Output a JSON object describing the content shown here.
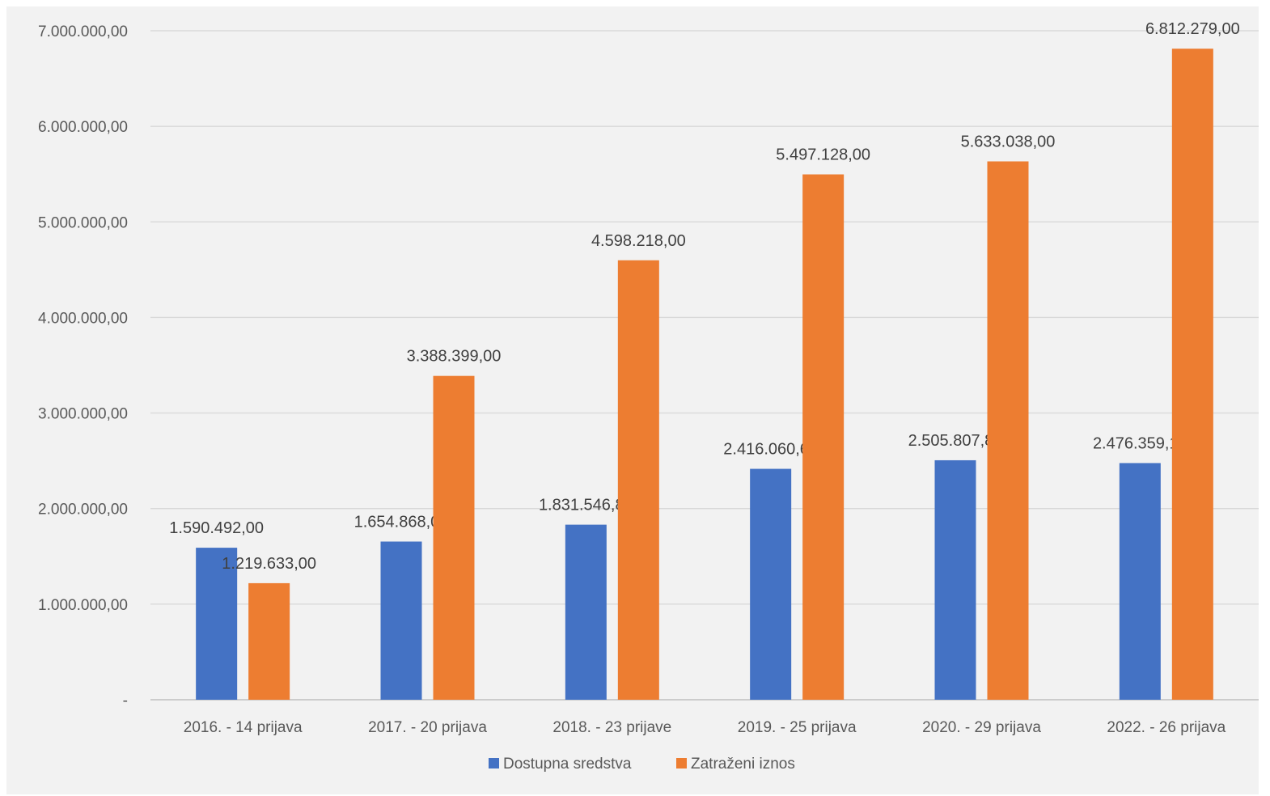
{
  "chart_data": {
    "type": "bar",
    "categories": [
      "2016. - 14 prijava",
      "2017. - 20 prijava",
      "2018. - 23 prijave",
      "2019. - 25 prijava",
      "2020. - 29 prijava",
      "2022. - 26 prijava"
    ],
    "series": [
      {
        "name": "Dostupna sredstva",
        "color": "#4472c4",
        "values": [
          1590492.0,
          1654868.0,
          1831546.82,
          2416060.61,
          2505807.89,
          2476359.19
        ],
        "labels": [
          "1.590.492,00",
          "1.654.868,00",
          "1.831.546,82",
          "2.416.060,61",
          "2.505.807,89",
          "2.476.359,19"
        ]
      },
      {
        "name": "Zatraženi iznos",
        "color": "#ed7d31",
        "values": [
          1219633.0,
          3388399.0,
          4598218.0,
          5497128.0,
          5633038.0,
          6812279.0
        ],
        "labels": [
          "1.219.633,00",
          "3.388.399,00",
          "4.598.218,00",
          "5.497.128,00",
          "5.633.038,00",
          "6.812.279,00"
        ]
      }
    ],
    "ylim": [
      0,
      7000000
    ],
    "yticks": [
      {
        "value": 0,
        "label": "-"
      },
      {
        "value": 1000000,
        "label": "1.000.000,00"
      },
      {
        "value": 2000000,
        "label": "2.000.000,00"
      },
      {
        "value": 3000000,
        "label": "3.000.000,00"
      },
      {
        "value": 4000000,
        "label": "4.000.000,00"
      },
      {
        "value": 5000000,
        "label": "5.000.000,00"
      },
      {
        "value": 6000000,
        "label": "6.000.000,00"
      },
      {
        "value": 7000000,
        "label": "7.000.000,00"
      }
    ],
    "grid": true,
    "legend_position": "bottom",
    "title": "",
    "xlabel": "",
    "ylabel": ""
  }
}
